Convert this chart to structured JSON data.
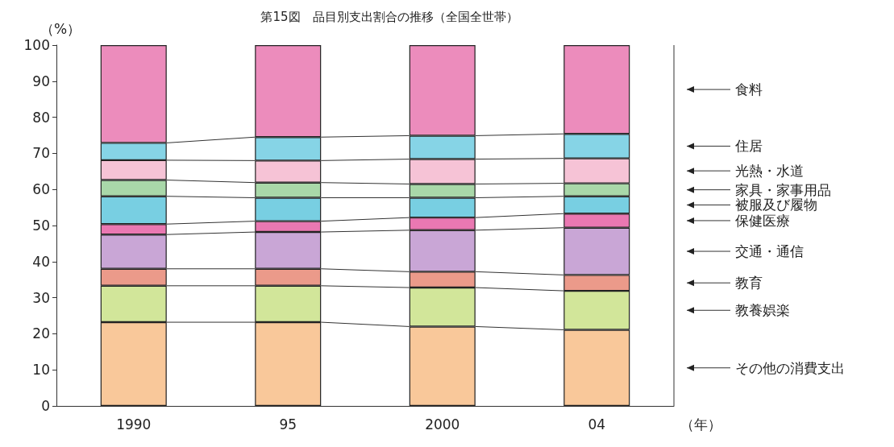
{
  "chart_data": {
    "type": "bar",
    "stacked": true,
    "title": "第15図　品目別支出割合の推移（全国全世帯）",
    "ylabel": "（%）",
    "xlabel": "（年）",
    "categories": [
      "1990",
      "95",
      "2000",
      "04"
    ],
    "ylim": [
      0,
      100
    ],
    "yticks": [
      0,
      10,
      20,
      30,
      40,
      50,
      60,
      70,
      80,
      90,
      100
    ],
    "grid": false,
    "legend": false,
    "series": [
      {
        "name": "その他の消費支出",
        "color": "#f9c89a",
        "values": [
          23.2,
          23.2,
          22.0,
          21.1
        ]
      },
      {
        "name": "教養娯楽",
        "color": "#d2e69a",
        "values": [
          10.1,
          10.1,
          10.8,
          10.8
        ]
      },
      {
        "name": "教育",
        "color": "#eb9a8a",
        "values": [
          4.7,
          4.7,
          4.4,
          4.4
        ]
      },
      {
        "name": "交通・通信",
        "color": "#c9a6d6",
        "values": [
          9.5,
          10.2,
          11.5,
          13.1
        ]
      },
      {
        "name": "保健医療",
        "color": "#ea78b2",
        "values": [
          2.9,
          3.0,
          3.5,
          3.9
        ]
      },
      {
        "name": "被服及び履物",
        "color": "#78cfe2",
        "values": [
          7.7,
          6.5,
          5.5,
          4.8
        ]
      },
      {
        "name": "家具・家事用品",
        "color": "#a9d8a9",
        "values": [
          4.5,
          4.2,
          3.8,
          3.6
        ]
      },
      {
        "name": "光熱・水道",
        "color": "#f6c3d6",
        "values": [
          5.5,
          6.1,
          6.9,
          6.9
        ]
      },
      {
        "name": "住居",
        "color": "#86d4e6",
        "values": [
          4.8,
          6.5,
          6.5,
          6.8
        ]
      },
      {
        "name": "食料",
        "color": "#ec8cbc",
        "values": [
          27.1,
          25.5,
          25.1,
          24.6
        ]
      }
    ]
  }
}
